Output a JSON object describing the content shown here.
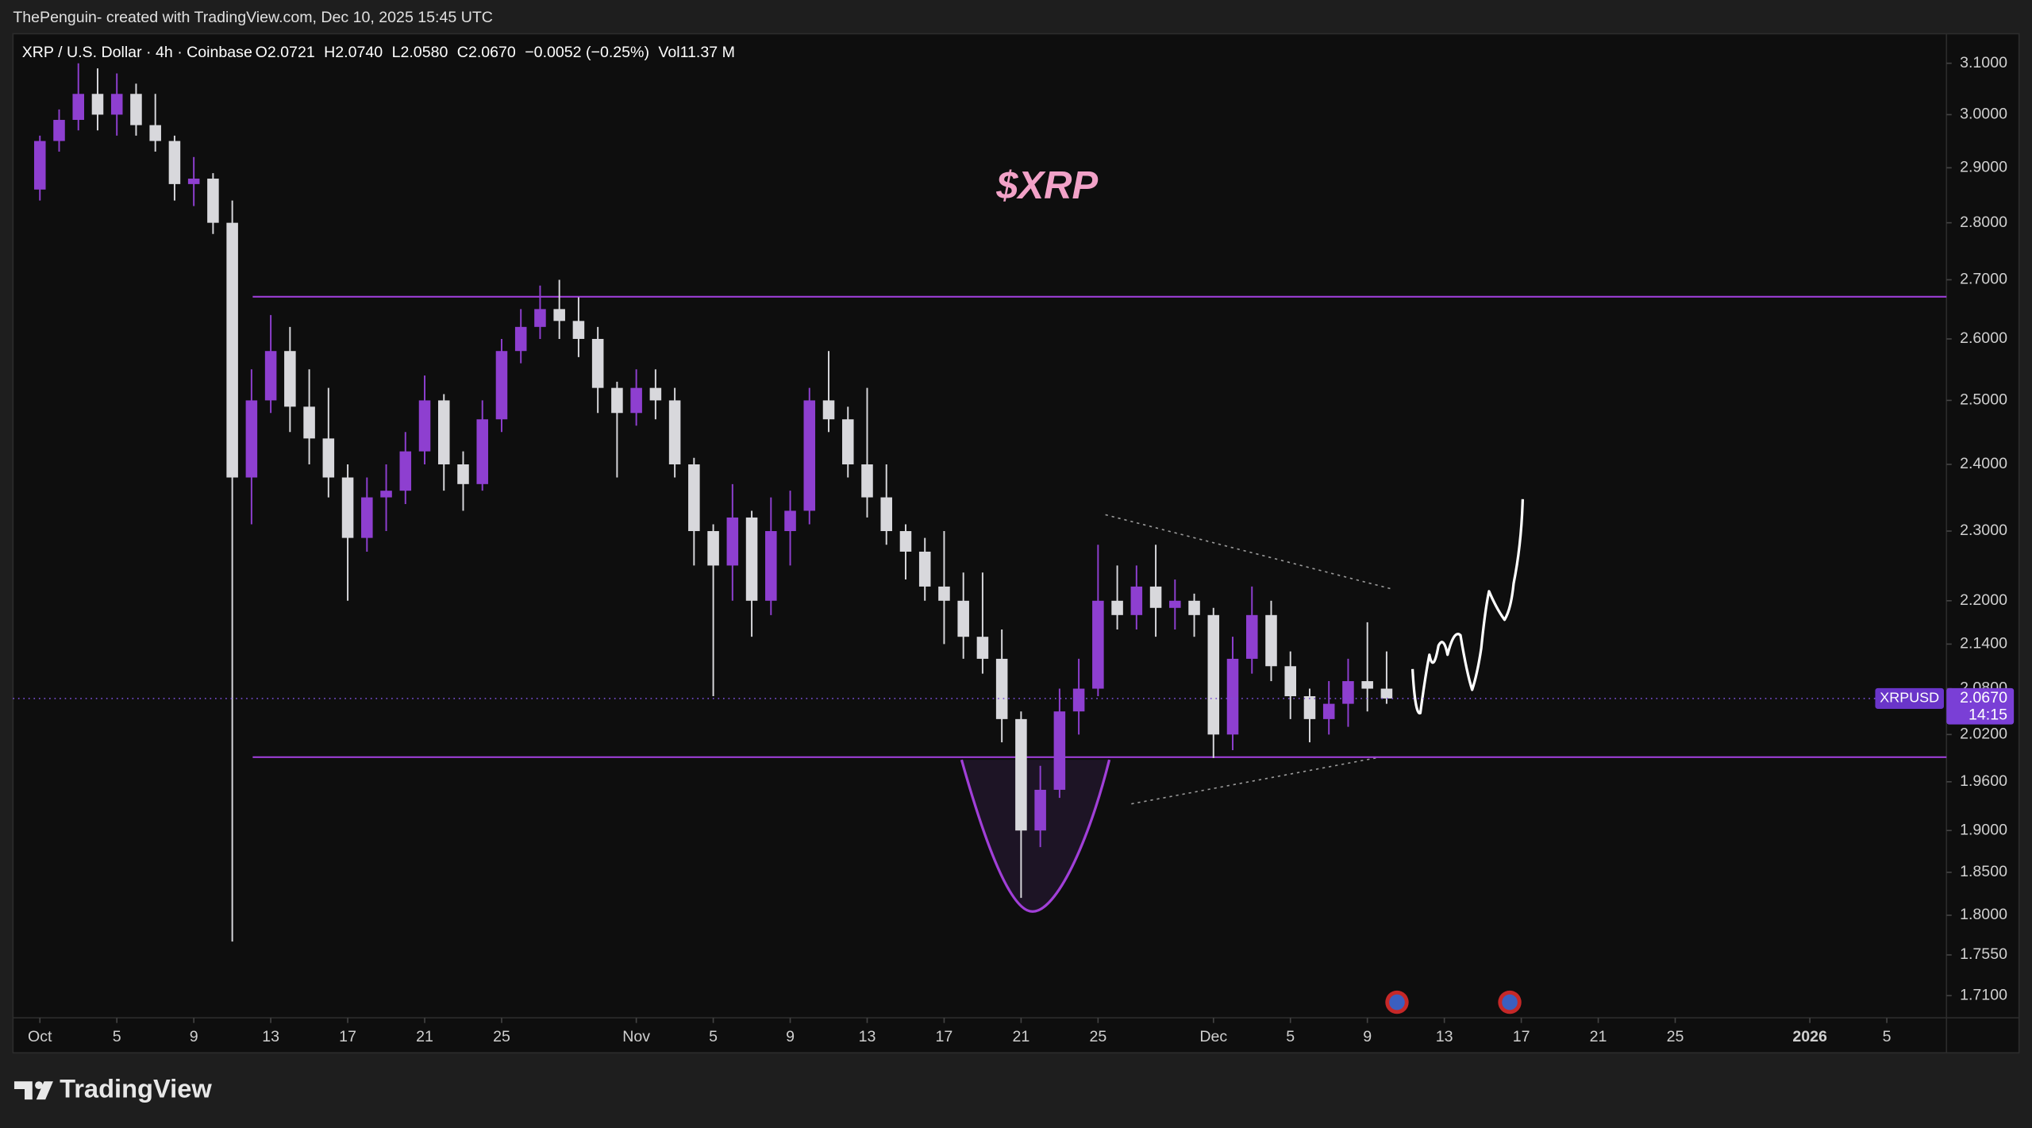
{
  "header": {
    "credit": "ThePenguin- created with TradingView.com, Dec 10, 2025 15:45 UTC"
  },
  "footer": {
    "brand": "TradingView"
  },
  "chart_data": {
    "type": "candlestick",
    "title": "XRP / U.S. Dollar · 4h · Coinbase",
    "ohlc": [
      "O2.0721",
      "H2.0740",
      "L2.0580",
      "C2.0670",
      "−0.0052 (−0.25%)",
      "Vol11.37 M"
    ],
    "annotation": "$XRP",
    "up_color": "#8e3fd0",
    "down_color": "#d8d8dc",
    "log_scale": true,
    "x": [
      0,
      1,
      2,
      3,
      4,
      5,
      6,
      7,
      8,
      9,
      10,
      11,
      12,
      13,
      14,
      15,
      16,
      17,
      18,
      19,
      20,
      21,
      22,
      23,
      24,
      25,
      26,
      27,
      28,
      29,
      30,
      31,
      32,
      33,
      34,
      35,
      36,
      37,
      38,
      39,
      40,
      41,
      42,
      43,
      44,
      45,
      46,
      47,
      48,
      49,
      50,
      51,
      52,
      53,
      54,
      55,
      56,
      57,
      58,
      59,
      60,
      61,
      62,
      63,
      64,
      65,
      66,
      67,
      68,
      69,
      70
    ],
    "open": [
      2.86,
      2.95,
      2.99,
      3.04,
      3.0,
      3.04,
      2.98,
      2.95,
      2.87,
      2.88,
      2.8,
      2.38,
      2.5,
      2.58,
      2.49,
      2.44,
      2.38,
      2.29,
      2.35,
      2.36,
      2.42,
      2.5,
      2.4,
      2.37,
      2.47,
      2.58,
      2.62,
      2.65,
      2.63,
      2.6,
      2.52,
      2.48,
      2.52,
      2.5,
      2.4,
      2.3,
      2.25,
      2.32,
      2.2,
      2.3,
      2.33,
      2.5,
      2.47,
      2.4,
      2.35,
      2.3,
      2.27,
      2.22,
      2.2,
      2.15,
      2.12,
      2.04,
      1.9,
      1.95,
      2.05,
      2.08,
      2.2,
      2.18,
      2.22,
      2.19,
      2.2,
      2.18,
      2.02,
      2.12,
      2.18,
      2.11,
      2.07,
      2.04,
      2.06,
      2.09,
      2.08
    ],
    "high": [
      2.96,
      3.01,
      3.1,
      3.09,
      3.08,
      3.06,
      3.04,
      2.96,
      2.92,
      2.89,
      2.84,
      2.55,
      2.64,
      2.62,
      2.55,
      2.52,
      2.4,
      2.38,
      2.4,
      2.45,
      2.54,
      2.51,
      2.42,
      2.5,
      2.6,
      2.65,
      2.69,
      2.7,
      2.67,
      2.62,
      2.53,
      2.55,
      2.55,
      2.52,
      2.41,
      2.31,
      2.37,
      2.33,
      2.35,
      2.36,
      2.52,
      2.58,
      2.49,
      2.52,
      2.4,
      2.31,
      2.29,
      2.3,
      2.24,
      2.24,
      2.16,
      2.05,
      1.98,
      2.08,
      2.12,
      2.28,
      2.25,
      2.25,
      2.28,
      2.23,
      2.21,
      2.19,
      2.15,
      2.22,
      2.2,
      2.13,
      2.08,
      2.09,
      2.12,
      2.17,
      2.13
    ],
    "low": [
      2.84,
      2.93,
      2.97,
      2.97,
      2.96,
      2.96,
      2.93,
      2.84,
      2.83,
      2.78,
      1.77,
      2.31,
      2.48,
      2.45,
      2.4,
      2.35,
      2.2,
      2.27,
      2.3,
      2.34,
      2.4,
      2.36,
      2.33,
      2.36,
      2.45,
      2.56,
      2.6,
      2.6,
      2.57,
      2.48,
      2.38,
      2.46,
      2.47,
      2.38,
      2.25,
      2.07,
      2.2,
      2.15,
      2.18,
      2.25,
      2.31,
      2.45,
      2.38,
      2.32,
      2.28,
      2.23,
      2.2,
      2.14,
      2.12,
      2.1,
      2.01,
      1.82,
      1.88,
      1.94,
      2.02,
      2.07,
      2.16,
      2.16,
      2.15,
      2.16,
      2.15,
      1.99,
      2.0,
      2.1,
      2.09,
      2.04,
      2.01,
      2.02,
      2.03,
      2.05,
      2.06
    ],
    "close": [
      2.95,
      2.99,
      3.04,
      3.0,
      3.04,
      2.98,
      2.95,
      2.87,
      2.88,
      2.8,
      2.38,
      2.5,
      2.58,
      2.49,
      2.44,
      2.38,
      2.29,
      2.35,
      2.36,
      2.42,
      2.5,
      2.4,
      2.37,
      2.47,
      2.58,
      2.62,
      2.65,
      2.63,
      2.6,
      2.52,
      2.48,
      2.52,
      2.5,
      2.4,
      2.3,
      2.25,
      2.32,
      2.2,
      2.3,
      2.33,
      2.5,
      2.47,
      2.4,
      2.35,
      2.3,
      2.27,
      2.22,
      2.2,
      2.15,
      2.12,
      2.04,
      1.9,
      1.95,
      2.05,
      2.08,
      2.2,
      2.18,
      2.22,
      2.19,
      2.2,
      2.18,
      2.02,
      2.12,
      2.18,
      2.11,
      2.07,
      2.04,
      2.06,
      2.09,
      2.08,
      2.067
    ],
    "xlim": [
      -1.4,
      99.1
    ],
    "xticks": [
      {
        "value": 0,
        "label": "Oct"
      },
      {
        "value": 4,
        "label": "5"
      },
      {
        "value": 8,
        "label": "9"
      },
      {
        "value": 12,
        "label": "13"
      },
      {
        "value": 16,
        "label": "17"
      },
      {
        "value": 20,
        "label": "21"
      },
      {
        "value": 24,
        "label": "25"
      },
      {
        "value": 31,
        "label": "Nov"
      },
      {
        "value": 35,
        "label": "5"
      },
      {
        "value": 39,
        "label": "9"
      },
      {
        "value": 43,
        "label": "13"
      },
      {
        "value": 47,
        "label": "17"
      },
      {
        "value": 51,
        "label": "21"
      },
      {
        "value": 55,
        "label": "25"
      },
      {
        "value": 61,
        "label": "Dec"
      },
      {
        "value": 65,
        "label": "5"
      },
      {
        "value": 69,
        "label": "9"
      },
      {
        "value": 73,
        "label": "13"
      },
      {
        "value": 77,
        "label": "17"
      },
      {
        "value": 81,
        "label": "21"
      },
      {
        "value": 85,
        "label": "25"
      },
      {
        "value": 92,
        "label": "2026"
      },
      {
        "value": 96,
        "label": "5"
      }
    ],
    "ylim": [
      1.686,
      3.159
    ],
    "yticks": [
      {
        "value": 3.1,
        "label": "3.1000"
      },
      {
        "value": 3.0,
        "label": "3.0000"
      },
      {
        "value": 2.9,
        "label": "2.9000"
      },
      {
        "value": 2.8,
        "label": "2.8000"
      },
      {
        "value": 2.7,
        "label": "2.7000"
      },
      {
        "value": 2.6,
        "label": "2.6000"
      },
      {
        "value": 2.5,
        "label": "2.5000"
      },
      {
        "value": 2.4,
        "label": "2.4000"
      },
      {
        "value": 2.3,
        "label": "2.3000"
      },
      {
        "value": 2.2,
        "label": "2.2000"
      },
      {
        "value": 2.14,
        "label": "2.1400"
      },
      {
        "value": 2.08,
        "label": "2.0800"
      },
      {
        "value": 2.02,
        "label": "2.0200"
      },
      {
        "value": 1.96,
        "label": "1.9600"
      },
      {
        "value": 1.9,
        "label": "1.9000"
      },
      {
        "value": 1.85,
        "label": "1.8500"
      },
      {
        "value": 1.8,
        "label": "1.8000"
      },
      {
        "value": 1.755,
        "label": "1.7550"
      },
      {
        "value": 1.71,
        "label": "1.7100"
      }
    ],
    "levels": [
      2.671,
      1.991
    ],
    "level_color": "#9c3fd6",
    "price_line": {
      "value": 2.067,
      "label": "2.0670",
      "symbol": "XRPUSD",
      "countdown": "14:15"
    }
  }
}
